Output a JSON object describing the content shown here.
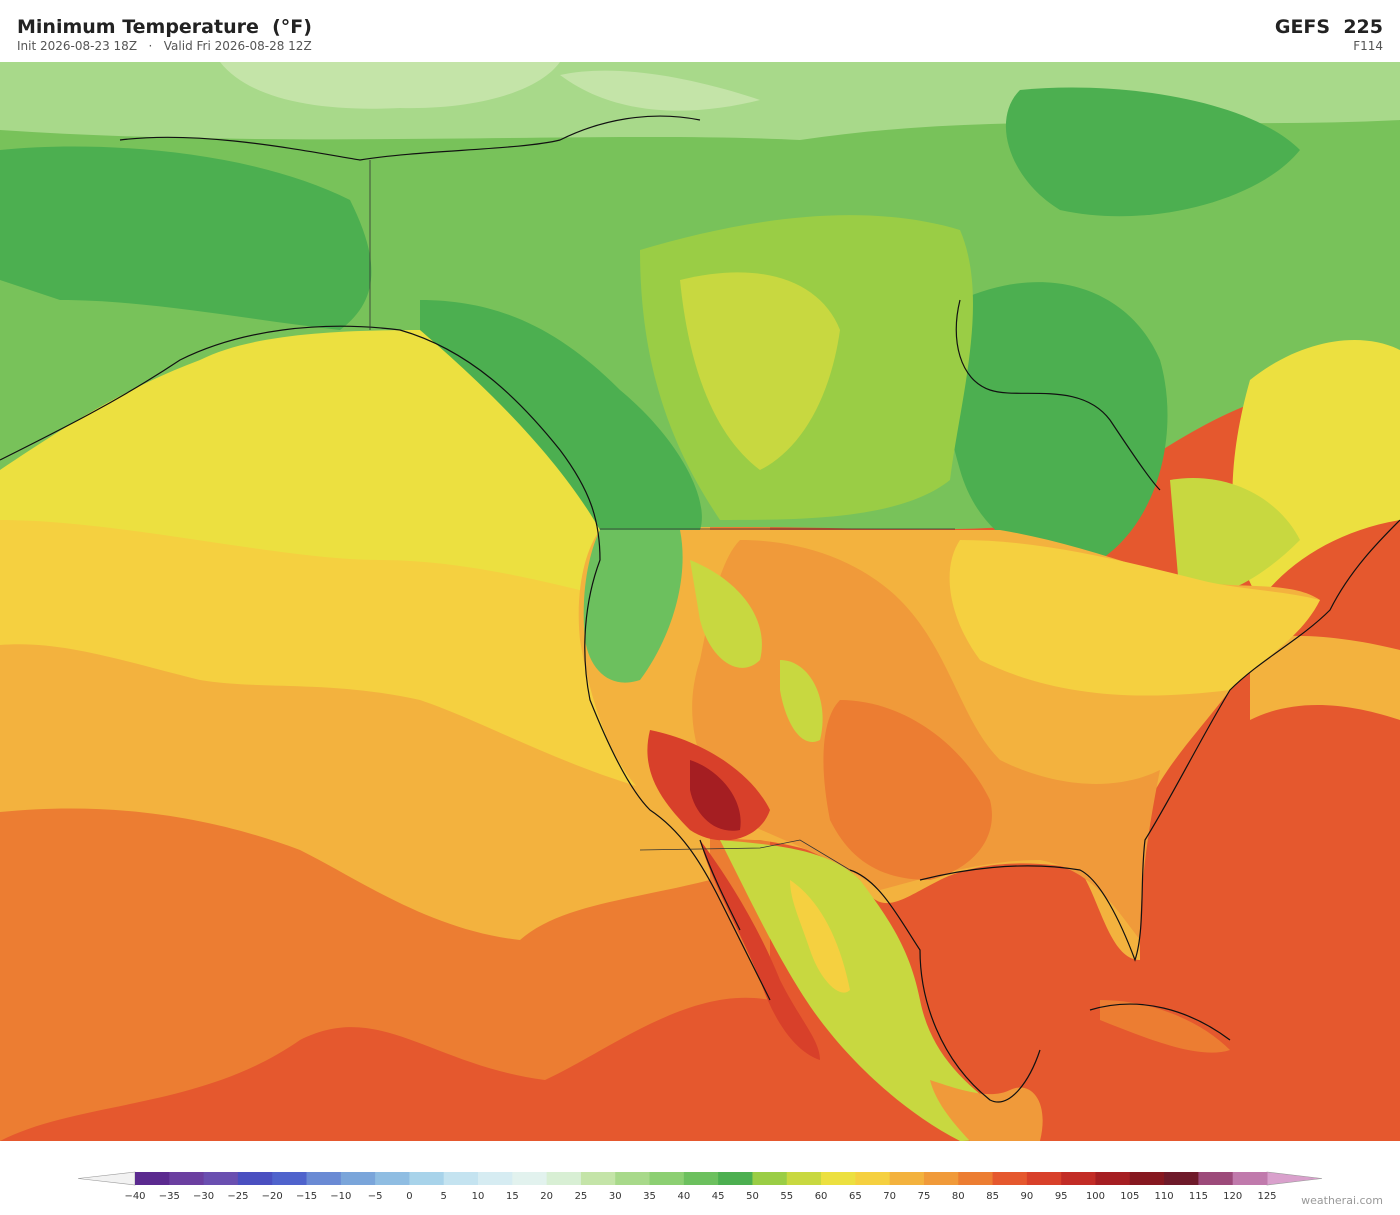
{
  "header": {
    "title": "Minimum Temperature  (°F)",
    "init": "Init 2026-08-23 18Z",
    "separator": "·",
    "valid": "Valid Fri 2026-08-28 12Z",
    "model": "GEFS  225",
    "forecast_hour": "F114"
  },
  "colorbar": {
    "labels": [
      "−40",
      "−35",
      "−30",
      "−25",
      "−20",
      "−15",
      "−10",
      "−5",
      "0",
      "5",
      "10",
      "15",
      "20",
      "25",
      "30",
      "35",
      "40",
      "45",
      "50",
      "55",
      "60",
      "65",
      "70",
      "75",
      "80",
      "85",
      "90",
      "95",
      "100",
      "105",
      "110",
      "115",
      "120",
      "125"
    ],
    "colors": [
      "#5b2a8f",
      "#6b3fa0",
      "#6a4fb0",
      "#4a4fc0",
      "#4f63cc",
      "#6a8ad4",
      "#7aa5da",
      "#8fbde2",
      "#a8d3ea",
      "#c4e3f0",
      "#d6ecf2",
      "#e2f2ee",
      "#d8efd4",
      "#c4e4a8",
      "#a8d98a",
      "#8ccf72",
      "#6cc05e",
      "#4caf50",
      "#9acd45",
      "#c8d840",
      "#ece040",
      "#f5d040",
      "#f3b23e",
      "#f09a3a",
      "#ec7d32",
      "#e5582e",
      "#d8402a",
      "#c22c26",
      "#a51e22",
      "#861820",
      "#6e1a2a",
      "#9c4a7a",
      "#c07aac"
    ],
    "under_color": "#f2f2f2",
    "over_color": "#d9a0cc"
  },
  "footer": {
    "credit": "weatherai.com"
  }
}
